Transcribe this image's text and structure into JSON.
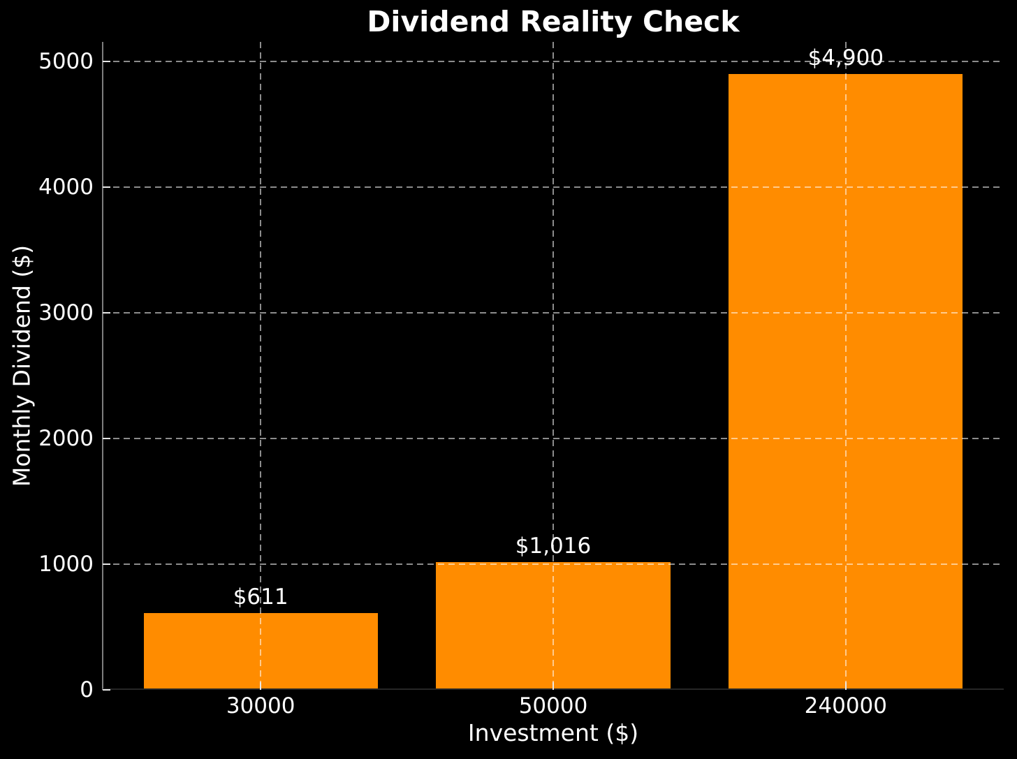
{
  "colors": {
    "background": "#000000",
    "bar": "#ff8c00",
    "text": "#ffffff",
    "grid": "rgba(255,255,255,0.55)",
    "spine_left": "#7e7e7e",
    "spine_bottom": "#262626",
    "tick": "#e8e8e8"
  },
  "chart_data": {
    "type": "bar",
    "title": "Dividend Reality Check",
    "xlabel": "Investment ($)",
    "ylabel": "Monthly Dividend ($)",
    "categories": [
      "30000",
      "50000",
      "240000"
    ],
    "values": [
      611,
      1016,
      4900
    ],
    "bar_labels": [
      "$611",
      "$1,016",
      "$4,900"
    ],
    "yticks": [
      0,
      1000,
      2000,
      3000,
      4000,
      5000
    ],
    "ylim": [
      0,
      5155
    ],
    "bar_width_fraction": 0.8,
    "grid": "dashed horizontal and vertical",
    "legend": "none",
    "background": "black",
    "bar_color": "#ff8c00"
  }
}
